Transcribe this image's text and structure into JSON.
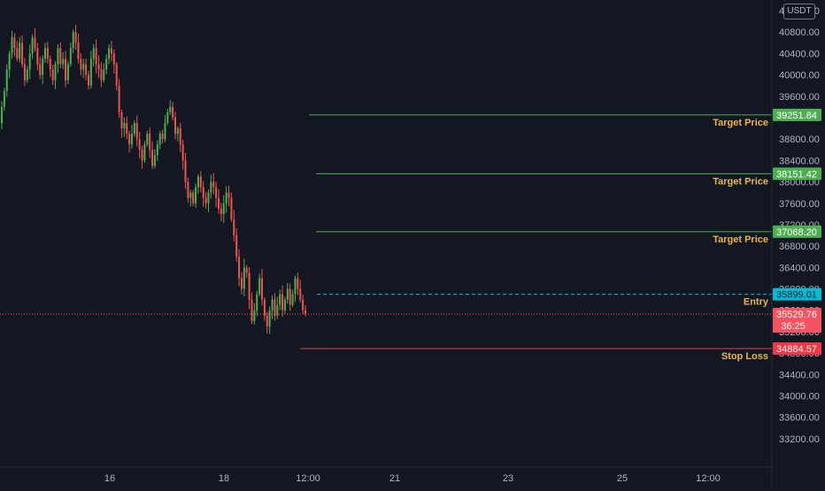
{
  "currency": "USDT",
  "colors": {
    "background": "#131722",
    "up": "#26a69a",
    "up_bright": "#4caf50",
    "down": "#ef5350",
    "target": "#4caf50",
    "entry": "#00bcd4",
    "stop": "#f23645",
    "current": "#f7525f",
    "label_text": "#e8b64c"
  },
  "chart_data": {
    "type": "candlestick",
    "y_ticks": [
      "41200.00",
      "40800.00",
      "40400.00",
      "40000.00",
      "39600.00",
      "39200.00",
      "38800.00",
      "38400.00",
      "38000.00",
      "37600.00",
      "37200.00",
      "36800.00",
      "36400.00",
      "36000.00",
      "35600.00",
      "35200.00",
      "34800.00",
      "34400.00",
      "34000.00",
      "33600.00",
      "33200.00"
    ],
    "x_ticks": [
      "16",
      "18",
      "12:00",
      "21",
      "23",
      "25",
      "12:00"
    ],
    "ylim": [
      32900,
      41300
    ],
    "levels": [
      {
        "label": "Target Price",
        "value": 39251.84,
        "value_text": "39251.84",
        "kind": "target"
      },
      {
        "label": "Target Price",
        "value": 38151.42,
        "value_text": "38151.42",
        "kind": "target"
      },
      {
        "label": "Target Price",
        "value": 37068.2,
        "value_text": "37068.20",
        "kind": "target"
      },
      {
        "label": "Entry",
        "value": 35899.01,
        "value_text": "35899.01",
        "kind": "entry"
      },
      {
        "label": "Stop Loss",
        "value": 34884.57,
        "value_text": "34884.57",
        "kind": "stop"
      }
    ],
    "current_price": {
      "value": 35529.76,
      "value_text": "35529.76",
      "countdown": "36:25"
    },
    "candle_closes": [
      39400,
      39700,
      40100,
      40400,
      40700,
      40500,
      40300,
      40600,
      40200,
      39900,
      40100,
      40400,
      40700,
      40500,
      40200,
      40000,
      40300,
      40500,
      40300,
      40100,
      39900,
      40200,
      40500,
      40200,
      40300,
      39900,
      40200,
      40500,
      40800,
      40600,
      40300,
      40100,
      40200,
      40000,
      39800,
      40300,
      40500,
      40200,
      40100,
      39900,
      40100,
      40300,
      40500,
      40400,
      40200,
      39800,
      39300,
      39000,
      39100,
      38900,
      38700,
      38900,
      39100,
      38800,
      38600,
      38400,
      38700,
      38900,
      38600,
      38300,
      38500,
      38700,
      38900,
      38800,
      39100,
      39300,
      39400,
      39200,
      38900,
      39000,
      38700,
      38400,
      38000,
      37700,
      37800,
      37600,
      37900,
      38100,
      37900,
      37700,
      37600,
      37800,
      38000,
      37900,
      37700,
      37500,
      37400,
      37600,
      37800,
      37700,
      37300,
      37000,
      36600,
      36200,
      36000,
      36400,
      36300,
      35800,
      35400,
      35600,
      35900,
      36200,
      35800,
      35500,
      35300,
      35600,
      35800,
      35500,
      35700,
      35900,
      35600,
      35800,
      36000,
      35700,
      35900,
      36200,
      36000,
      35800,
      35600,
      35529.76
    ]
  }
}
